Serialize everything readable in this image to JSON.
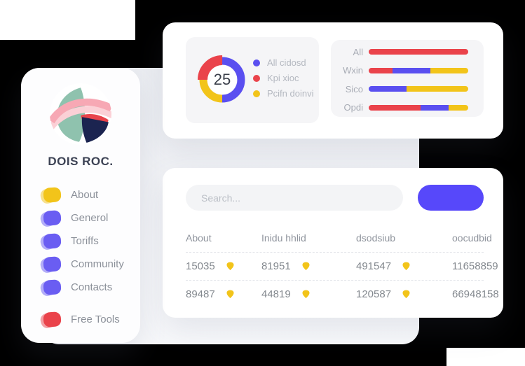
{
  "colors": {
    "red": "#ea434b",
    "indigo": "#5a4ff0",
    "yellow": "#f2c41a",
    "button_blue": "#5748fa",
    "logo_teal": "#8fc2ae",
    "logo_navy": "#1b2450",
    "logo_pink": "#f7a8b4",
    "logo_pink_light": "#fbd0d6"
  },
  "sidebar": {
    "brand": "DOIS ROC.",
    "items": [
      {
        "label": "About",
        "color": "#f2c41a"
      },
      {
        "label": "Generol",
        "color": "#6a5df2"
      },
      {
        "label": "Toriffs",
        "color": "#6a5df2"
      },
      {
        "label": "Community",
        "color": "#6a5df2"
      },
      {
        "label": "Contacts",
        "color": "#6a5df2"
      }
    ],
    "footer_item": {
      "label": "Free Tools",
      "color": "#ea434b"
    }
  },
  "stats_card": {
    "donut": {
      "center_value": "25",
      "segments": [
        {
          "name": "All cidosd",
          "color": "#5a4ff0",
          "pct": 50,
          "thick": false
        },
        {
          "name": "Pcifn doinvi",
          "color": "#f2c41a",
          "pct": 25,
          "thick": false
        },
        {
          "name": "Kpi xioc",
          "color": "#ea434b",
          "pct": 25,
          "thick": true
        }
      ],
      "legend": [
        {
          "label": "All cidosd",
          "color": "#5a4ff0"
        },
        {
          "label": "Kpi xioc",
          "color": "#ea434b"
        },
        {
          "label": "Pcifn doinvi",
          "color": "#f2c41a"
        }
      ]
    },
    "bars": [
      {
        "label": "All",
        "segments": [
          {
            "color": "#ea434b",
            "pct": 100
          }
        ]
      },
      {
        "label": "Wxin",
        "segments": [
          {
            "color": "#ea434b",
            "pct": 24
          },
          {
            "color": "#5a4ff0",
            "pct": 38
          },
          {
            "color": "#f2c41a",
            "pct": 38
          }
        ]
      },
      {
        "label": "Sico",
        "segments": [
          {
            "color": "#5a4ff0",
            "pct": 38
          },
          {
            "color": "#f2c41a",
            "pct": 62
          }
        ]
      },
      {
        "label": "Opdi",
        "segments": [
          {
            "color": "#ea434b",
            "pct": 52
          },
          {
            "color": "#5a4ff0",
            "pct": 28
          },
          {
            "color": "#f2c41a",
            "pct": 20
          }
        ]
      }
    ]
  },
  "table_card": {
    "search": {
      "placeholder": "Search..."
    },
    "button_label": "",
    "columns": [
      "About",
      "Inidu hhlid",
      "dsodsiub",
      "oocudbid"
    ],
    "rows": [
      [
        {
          "value": "15035",
          "badge": true
        },
        {
          "value": "81951",
          "badge": true
        },
        {
          "value": "491547",
          "badge": true
        },
        {
          "value": "11658859",
          "badge": false
        }
      ],
      [
        {
          "value": "89487",
          "badge": true
        },
        {
          "value": "44819",
          "badge": true
        },
        {
          "value": "120587",
          "badge": true
        },
        {
          "value": "66948158",
          "badge": false
        }
      ]
    ]
  }
}
